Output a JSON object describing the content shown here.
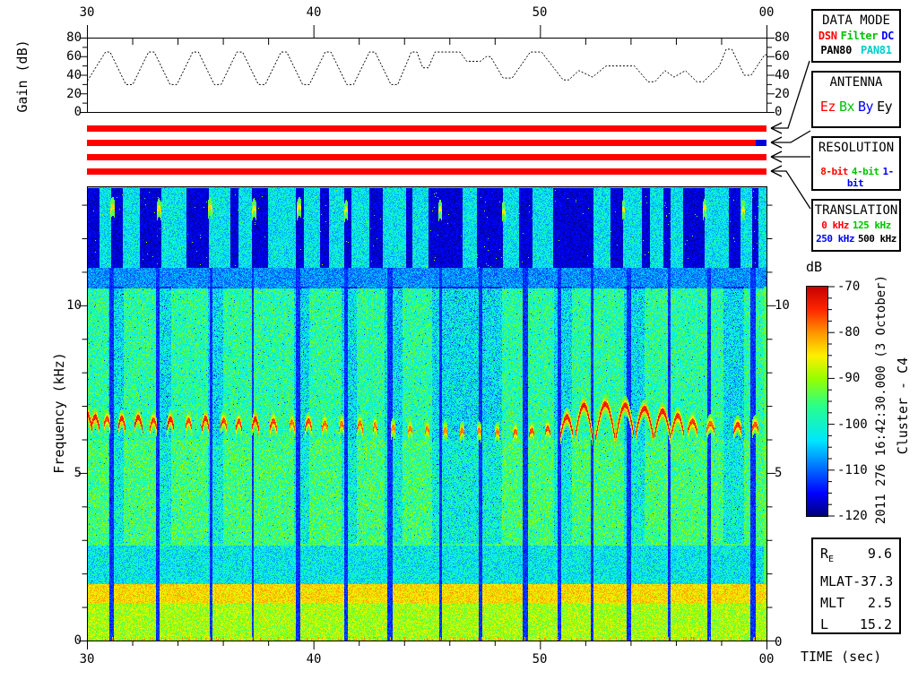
{
  "palette": {
    "red": "#ff0000",
    "green": "#00c300",
    "blue": "#0000ff",
    "cyan": "#00cccc",
    "black": "#000000",
    "bar_red": "#ff0000",
    "bar_blue": "#0000dd"
  },
  "top_axis": {
    "ticks": [
      "30",
      "40",
      "50",
      "00"
    ]
  },
  "gain_panel": {
    "ylabel": "Gain (dB)",
    "yticks": [
      "0",
      "20",
      "40",
      "60",
      "80"
    ]
  },
  "freq_axis": {
    "ylabel": "Frequency (kHz)",
    "yticks": [
      "0",
      "5",
      "10"
    ]
  },
  "bottom_axis": {
    "ticks": [
      "30",
      "40",
      "50",
      "00"
    ],
    "label": "TIME (sec)"
  },
  "colorbar": {
    "label": "dB",
    "ticks": [
      "-70",
      "-80",
      "-90",
      "-100",
      "-110",
      "-120"
    ]
  },
  "datetime_label": "2011 276 16:42:30.000 (3 October)",
  "spacecraft_label": "Cluster - C4",
  "status_bars": {
    "color": "#ff0000",
    "count": 4,
    "blue_segment": {
      "color": "#0000dd"
    }
  },
  "side_panel": {
    "data_mode": {
      "title": "DATA MODE",
      "row1": [
        {
          "text": "DSN",
          "color": "#ff0000"
        },
        {
          "text": "Filter",
          "color": "#00c300"
        },
        {
          "text": "DC",
          "color": "#0000ff"
        }
      ],
      "row2": [
        {
          "text": "PAN80",
          "color": "#000000"
        },
        {
          "text": "PAN81",
          "color": "#00cccc"
        }
      ]
    },
    "antenna": {
      "title": "ANTENNA",
      "row": [
        {
          "text": "Ez",
          "color": "#ff0000"
        },
        {
          "text": "Bx",
          "color": "#00c300"
        },
        {
          "text": "By",
          "color": "#0000ff"
        },
        {
          "text": "Ey",
          "color": "#000000"
        }
      ]
    },
    "resolution": {
      "title": "RESOLUTION",
      "row": [
        {
          "text": "8-bit",
          "color": "#ff0000"
        },
        {
          "text": "4-bit",
          "color": "#00c300"
        },
        {
          "text": "1-bit",
          "color": "#0000ff"
        }
      ]
    },
    "translation": {
      "title": "TRANSLATION",
      "row1": [
        {
          "text": "0 kHz",
          "color": "#ff0000"
        },
        {
          "text": "125 kHz",
          "color": "#00c300"
        }
      ],
      "row2": [
        {
          "text": "250 kHz",
          "color": "#0000ff"
        },
        {
          "text": "500 kHz",
          "color": "#000000"
        }
      ]
    }
  },
  "ephemeris": {
    "rows": [
      {
        "label": "R",
        "sub": "E",
        "value": "9.6"
      },
      {
        "label": "MLAT",
        "sub": "",
        "value": "-37.3"
      },
      {
        "label": "MLT",
        "sub": "",
        "value": "2.5"
      },
      {
        "label": "L",
        "sub": "",
        "value": "15.2"
      }
    ]
  },
  "chart_data": [
    {
      "type": "line",
      "title": "AGC gain vs time",
      "xlabel": "TIME (sec)",
      "ylabel": "Gain (dB)",
      "x_range": [
        30,
        60
      ],
      "ylim": [
        0,
        80
      ],
      "xticks": [
        30,
        40,
        50,
        60
      ],
      "yticks": [
        0,
        20,
        40,
        60,
        80
      ],
      "series": [
        {
          "name": "gain",
          "points": [
            [
              30,
              34
            ],
            [
              30.8,
              65
            ],
            [
              31.0,
              65
            ],
            [
              31.7,
              30
            ],
            [
              32.0,
              30
            ],
            [
              32.7,
              65
            ],
            [
              32.95,
              65
            ],
            [
              33.65,
              30
            ],
            [
              33.95,
              30
            ],
            [
              34.65,
              65
            ],
            [
              34.9,
              65
            ],
            [
              35.6,
              30
            ],
            [
              35.9,
              30
            ],
            [
              36.6,
              65
            ],
            [
              36.85,
              65
            ],
            [
              37.55,
              30
            ],
            [
              37.85,
              30
            ],
            [
              38.55,
              65
            ],
            [
              38.8,
              65
            ],
            [
              39.5,
              30
            ],
            [
              39.8,
              30
            ],
            [
              40.5,
              65
            ],
            [
              40.75,
              65
            ],
            [
              41.45,
              30
            ],
            [
              41.75,
              30
            ],
            [
              42.45,
              65
            ],
            [
              42.7,
              65
            ],
            [
              43.4,
              30
            ],
            [
              43.7,
              30
            ],
            [
              44.3,
              65
            ],
            [
              44.55,
              65
            ],
            [
              44.8,
              48
            ],
            [
              45.05,
              48
            ],
            [
              45.35,
              65
            ],
            [
              46.45,
              65
            ],
            [
              46.75,
              55
            ],
            [
              47.35,
              55
            ],
            [
              47.6,
              60
            ],
            [
              47.8,
              60
            ],
            [
              48.35,
              37
            ],
            [
              48.75,
              37
            ],
            [
              49.55,
              65
            ],
            [
              50.05,
              65
            ],
            [
              51.0,
              35
            ],
            [
              51.25,
              35
            ],
            [
              51.7,
              45
            ],
            [
              52.3,
              38
            ],
            [
              52.9,
              50
            ],
            [
              54.15,
              50
            ],
            [
              54.75,
              33
            ],
            [
              55.05,
              33
            ],
            [
              55.5,
              45
            ],
            [
              55.9,
              38
            ],
            [
              56.4,
              45
            ],
            [
              56.9,
              33
            ],
            [
              57.2,
              33
            ],
            [
              57.9,
              50
            ],
            [
              58.2,
              68
            ],
            [
              58.45,
              68
            ],
            [
              59.0,
              40
            ],
            [
              59.3,
              40
            ],
            [
              59.9,
              62
            ],
            [
              60,
              62
            ]
          ]
        }
      ]
    },
    {
      "type": "heatmap",
      "title": "Cluster C4 WBD spectrogram",
      "xlabel": "TIME (sec)",
      "ylabel": "Frequency (kHz)",
      "x_range": [
        30,
        60
      ],
      "y_range_khz": [
        0,
        13.55
      ],
      "value_range_db": [
        -120,
        -70
      ],
      "colormap": "jet",
      "bands": [
        {
          "f0": 11.15,
          "f1": 13.55,
          "base_db": -119,
          "noise_db": 5
        },
        {
          "f0": 10.55,
          "f1": 11.15,
          "base_db": -112,
          "noise_db": 8
        },
        {
          "f0": 6.0,
          "f1": 10.55,
          "base_db": -104,
          "noise_db": 13
        },
        {
          "f0": 2.85,
          "f1": 6.0,
          "base_db": -102,
          "noise_db": 13
        },
        {
          "f0": 1.7,
          "f1": 2.85,
          "base_db": -108,
          "noise_db": 12
        },
        {
          "f0": 1.15,
          "f1": 1.7,
          "base_db": -88,
          "noise_db": 8
        },
        {
          "f0": 0.0,
          "f1": 1.15,
          "base_db": -94,
          "noise_db": 9
        }
      ],
      "top_columns": [
        [
          30.5,
          31.05
        ],
        [
          31.55,
          32.3
        ],
        [
          33.25,
          34.35
        ],
        [
          35.35,
          36.3
        ],
        [
          36.65,
          37.25
        ],
        [
          37.95,
          39.2
        ],
        [
          39.55,
          40.25
        ],
        [
          40.65,
          41.35
        ],
        [
          41.65,
          42.45
        ],
        [
          43.05,
          44.05
        ],
        [
          44.35,
          45.05
        ],
        [
          46.55,
          47.2
        ],
        [
          48.35,
          49.05
        ],
        [
          49.65,
          50.55
        ],
        [
          52.35,
          53.1
        ],
        [
          53.65,
          54.5
        ],
        [
          54.85,
          55.45
        ],
        [
          55.75,
          56.3
        ],
        [
          57.25,
          58.35
        ],
        [
          58.85,
          59.35
        ],
        [
          59.65,
          60.0
        ]
      ],
      "stripes": [
        {
          "t": 31.05,
          "w": 0.18
        },
        {
          "t": 33.1,
          "w": 0.18
        },
        {
          "t": 35.45,
          "w": 0.15
        },
        {
          "t": 37.3,
          "w": 0.1
        },
        {
          "t": 39.3,
          "w": 0.2
        },
        {
          "t": 41.4,
          "w": 0.15
        },
        {
          "t": 43.35,
          "w": 0.25
        },
        {
          "t": 45.6,
          "w": 0.12
        },
        {
          "t": 47.35,
          "w": 0.18
        },
        {
          "t": 49.35,
          "w": 0.25
        },
        {
          "t": 50.85,
          "w": 0.15
        },
        {
          "t": 52.3,
          "w": 0.1
        },
        {
          "t": 53.9,
          "w": 0.2
        },
        {
          "t": 55.7,
          "w": 0.1
        },
        {
          "t": 57.45,
          "w": 0.15
        },
        {
          "t": 59.4,
          "w": 0.22
        }
      ],
      "swaths": [
        [
          30.9,
          31.6
        ],
        [
          33.0,
          33.7
        ],
        [
          35.3,
          36.0
        ],
        [
          39.1,
          39.8
        ],
        [
          41.2,
          41.9
        ],
        [
          43.1,
          43.9
        ],
        [
          45.2,
          48.3
        ],
        [
          50.6,
          51.4
        ],
        [
          53.7,
          54.6
        ],
        [
          58.1,
          59.0
        ]
      ],
      "emission_arcs": [
        [
          29.7,
          0.5,
          6.3,
          0.5,
          -72
        ],
        [
          30.15,
          0.35,
          6.4,
          0.3,
          -72
        ],
        [
          30.7,
          0.3,
          6.4,
          0.25,
          -74
        ],
        [
          31.35,
          0.3,
          6.38,
          0.28,
          -72
        ],
        [
          32.05,
          0.35,
          6.38,
          0.3,
          -72
        ],
        [
          32.75,
          0.3,
          6.36,
          0.25,
          -74
        ],
        [
          33.5,
          0.3,
          6.36,
          0.28,
          -72
        ],
        [
          34.3,
          0.3,
          6.35,
          0.25,
          -74
        ],
        [
          35.05,
          0.3,
          6.36,
          0.3,
          -72
        ],
        [
          35.85,
          0.3,
          6.35,
          0.25,
          -74
        ],
        [
          36.55,
          0.25,
          6.35,
          0.22,
          -74
        ],
        [
          37.25,
          0.3,
          6.35,
          0.28,
          -72
        ],
        [
          38.05,
          0.3,
          6.34,
          0.25,
          -74
        ],
        [
          38.9,
          0.25,
          6.33,
          0.22,
          -76
        ],
        [
          39.6,
          0.3,
          6.33,
          0.25,
          -74
        ],
        [
          40.35,
          0.25,
          6.32,
          0.2,
          -76
        ],
        [
          41.1,
          0.25,
          6.3,
          0.2,
          -76
        ],
        [
          41.9,
          0.25,
          6.3,
          0.22,
          -76
        ],
        [
          42.6,
          0.2,
          6.28,
          0.18,
          -76
        ],
        [
          43.4,
          0.2,
          6.25,
          0.15,
          -77
        ],
        [
          44.15,
          0.2,
          6.22,
          0.15,
          -77
        ],
        [
          44.9,
          0.2,
          6.2,
          0.15,
          -77
        ],
        [
          45.7,
          0.2,
          6.2,
          0.12,
          -78
        ],
        [
          46.45,
          0.2,
          6.18,
          0.12,
          -77
        ],
        [
          47.2,
          0.2,
          6.18,
          0.12,
          -77
        ],
        [
          48.0,
          0.2,
          6.15,
          0.12,
          -77
        ],
        [
          48.8,
          0.2,
          6.15,
          0.12,
          -76
        ],
        [
          49.5,
          0.25,
          6.15,
          0.15,
          -75
        ],
        [
          50.2,
          0.25,
          6.18,
          0.18,
          -74
        ],
        [
          50.9,
          0.55,
          6.15,
          0.55,
          -72
        ],
        [
          51.55,
          0.75,
          6.1,
          0.95,
          -72
        ],
        [
          52.45,
          0.85,
          6.08,
          1.0,
          -72
        ],
        [
          53.35,
          0.8,
          6.1,
          0.95,
          -72
        ],
        [
          54.2,
          0.8,
          6.1,
          0.85,
          -72
        ],
        [
          55.05,
          0.7,
          6.12,
          0.75,
          -72
        ],
        [
          55.8,
          0.55,
          6.18,
          0.55,
          -73
        ],
        [
          56.5,
          0.45,
          6.22,
          0.35,
          -74
        ],
        [
          57.35,
          0.35,
          6.28,
          0.22,
          -75
        ],
        [
          58.55,
          0.35,
          6.25,
          0.22,
          -74
        ],
        [
          59.35,
          0.3,
          6.28,
          0.2,
          -75
        ],
        [
          31.0,
          0.2,
          12.85,
          0.15,
          -82
        ],
        [
          33.05,
          0.2,
          12.8,
          0.15,
          -82
        ],
        [
          35.3,
          0.2,
          12.85,
          0.15,
          -82
        ],
        [
          37.25,
          0.2,
          12.8,
          0.15,
          -83
        ],
        [
          39.25,
          0.2,
          12.85,
          0.15,
          -83
        ],
        [
          41.35,
          0.15,
          12.8,
          0.12,
          -84
        ],
        [
          45.5,
          0.15,
          12.8,
          0.12,
          -84
        ],
        [
          48.3,
          0.15,
          12.75,
          0.12,
          -84
        ],
        [
          53.6,
          0.15,
          12.8,
          0.12,
          -84
        ],
        [
          57.2,
          0.15,
          12.85,
          0.12,
          -83
        ],
        [
          58.9,
          0.15,
          12.8,
          0.12,
          -84
        ]
      ],
      "impulse_prob": 0.22,
      "impulse_db": -78
    }
  ]
}
